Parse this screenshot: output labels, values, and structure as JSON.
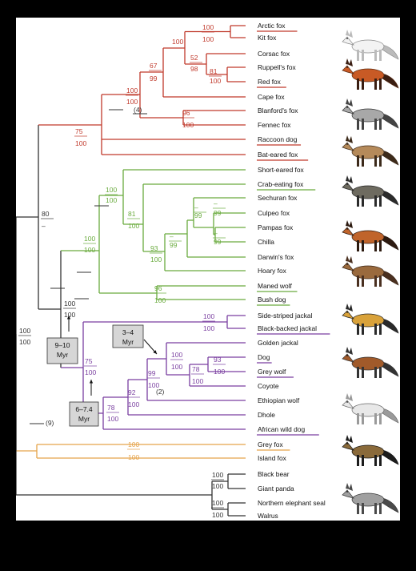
{
  "colors": {
    "vulpes": "#c0392b",
    "south_american": "#6aab3e",
    "wolf_like": "#7a3fa0",
    "grey_fox": "#e5a34a",
    "outgroup": "#333333",
    "root": "#333333"
  },
  "taxa": [
    {
      "name": "Arctic fox",
      "underlined": true,
      "clade": "vulpes"
    },
    {
      "name": "Kit fox",
      "underlined": false,
      "clade": "vulpes"
    },
    {
      "name": "Corsac fox",
      "underlined": false,
      "clade": "vulpes"
    },
    {
      "name": "Ruppell's fox",
      "underlined": false,
      "clade": "vulpes"
    },
    {
      "name": "Red fox",
      "underlined": true,
      "clade": "vulpes"
    },
    {
      "name": "Cape fox",
      "underlined": false,
      "clade": "vulpes"
    },
    {
      "name": "Blanford's fox",
      "underlined": false,
      "clade": "vulpes"
    },
    {
      "name": "Fennec fox",
      "underlined": false,
      "clade": "vulpes"
    },
    {
      "name": "Raccoon dog",
      "underlined": true,
      "clade": "vulpes"
    },
    {
      "name": "Bat-eared fox",
      "underlined": true,
      "clade": "vulpes"
    },
    {
      "name": "Short-eared fox",
      "underlined": false,
      "clade": "south_american"
    },
    {
      "name": "Crab-eating fox",
      "underlined": true,
      "clade": "south_american"
    },
    {
      "name": "Sechuran fox",
      "underlined": false,
      "clade": "south_american"
    },
    {
      "name": "Culpeo fox",
      "underlined": false,
      "clade": "south_american"
    },
    {
      "name": "Pampas fox",
      "underlined": false,
      "clade": "south_american"
    },
    {
      "name": "Chilla",
      "underlined": false,
      "clade": "south_american"
    },
    {
      "name": "Darwin's fox",
      "underlined": false,
      "clade": "south_american"
    },
    {
      "name": "Hoary fox",
      "underlined": false,
      "clade": "south_american"
    },
    {
      "name": "Maned wolf",
      "underlined": true,
      "clade": "south_american"
    },
    {
      "name": "Bush dog",
      "underlined": true,
      "clade": "south_american"
    },
    {
      "name": "Side-striped jackal",
      "underlined": false,
      "clade": "wolf_like"
    },
    {
      "name": "Black-backed jackal",
      "underlined": true,
      "clade": "wolf_like"
    },
    {
      "name": "Golden jackal",
      "underlined": false,
      "clade": "wolf_like"
    },
    {
      "name": "Dog",
      "underlined": true,
      "clade": "wolf_like"
    },
    {
      "name": "Grey wolf",
      "underlined": true,
      "clade": "wolf_like"
    },
    {
      "name": "Coyote",
      "underlined": false,
      "clade": "wolf_like"
    },
    {
      "name": "Ethiopian wolf",
      "underlined": false,
      "clade": "wolf_like"
    },
    {
      "name": "Dhole",
      "underlined": false,
      "clade": "wolf_like"
    },
    {
      "name": "African wild dog",
      "underlined": true,
      "clade": "wolf_like"
    },
    {
      "name": "Grey fox",
      "underlined": true,
      "clade": "grey_fox"
    },
    {
      "name": "Island fox",
      "underlined": false,
      "clade": "grey_fox"
    },
    {
      "name": "Black bear",
      "underlined": false,
      "clade": "outgroup"
    },
    {
      "name": "Giant panda",
      "underlined": false,
      "clade": "outgroup"
    },
    {
      "name": "Northern elephant seal",
      "underlined": false,
      "clade": "outgroup"
    },
    {
      "name": "Walrus",
      "underlined": false,
      "clade": "outgroup"
    }
  ],
  "node_support": [
    {
      "node": "arctic-kit",
      "top": "100",
      "bottom": "100",
      "clade": "vulpes"
    },
    {
      "node": "corsac-ruppell-red",
      "top": "52",
      "bottom": "98",
      "clade": "vulpes"
    },
    {
      "node": "ruppell-red",
      "top": "81",
      "bottom": "100",
      "clade": "vulpes"
    },
    {
      "node": "vulpes-core",
      "top": "100",
      "bottom": "",
      "clade": "vulpes"
    },
    {
      "node": "vulpes-plus-cape",
      "top": "67",
      "bottom": "99",
      "clade": "vulpes"
    },
    {
      "node": "vulpes-clade",
      "top": "100",
      "bottom": "100",
      "clade": "vulpes"
    },
    {
      "node": "blanford-fennec",
      "top": "96",
      "bottom": "100",
      "clade": "vulpes"
    },
    {
      "node": "red-fox-like",
      "top": "75",
      "bottom": "100",
      "clade": "vulpes"
    },
    {
      "node": "dogs-and-foxes",
      "top": "80",
      "bottom": "–",
      "clade": "root"
    },
    {
      "node": "south-american-core",
      "top": "100",
      "bottom": "100",
      "clade": "south_american"
    },
    {
      "node": "lycalopex-plus",
      "top": "81",
      "bottom": "100",
      "clade": "south_american"
    },
    {
      "node": "sechuran-culpeo-group",
      "top": "–",
      "bottom": "99",
      "clade": "south_american"
    },
    {
      "node": "culpeo-pampas",
      "top": "–",
      "bottom": "99",
      "clade": "south_american"
    },
    {
      "node": "pampas-chilla",
      "top": "–",
      "bottom": "99",
      "clade": "south_american"
    },
    {
      "node": "lycalopex",
      "top": "–",
      "bottom": "99",
      "clade": "south_american"
    },
    {
      "node": "lycalopex-plus-hoary",
      "top": "93",
      "bottom": "100",
      "clade": "south_american"
    },
    {
      "node": "south-american-canids",
      "top": "100",
      "bottom": "100",
      "clade": "south_american"
    },
    {
      "node": "maned-bush",
      "top": "96",
      "bottom": "100",
      "clade": "south_american"
    },
    {
      "node": "sa-plus-wolflike",
      "top": "100",
      "bottom": "100",
      "clade": "root"
    },
    {
      "node": "jackals",
      "top": "100",
      "bottom": "100",
      "clade": "wolf_like"
    },
    {
      "node": "dog-wolf-coyote",
      "top": "78",
      "bottom": "100",
      "clade": "wolf_like"
    },
    {
      "node": "dog-wolf",
      "top": "93",
      "bottom": "100",
      "clade": "wolf_like"
    },
    {
      "node": "golden-jackal-group",
      "top": "100",
      "bottom": "100",
      "clade": "wolf_like"
    },
    {
      "node": "plus-ethiopian",
      "top": "99",
      "bottom": "100",
      "clade": "wolf_like"
    },
    {
      "node": "plus-dhole",
      "top": "92",
      "bottom": "100",
      "clade": "wolf_like"
    },
    {
      "node": "plus-wild-dog",
      "top": "78",
      "bottom": "100",
      "clade": "wolf_like"
    },
    {
      "node": "wolf-like-canids",
      "top": "75",
      "bottom": "100",
      "clade": "wolf_like"
    },
    {
      "node": "grey-island",
      "top": "100",
      "bottom": "100",
      "clade": "grey_fox"
    },
    {
      "node": "canidae",
      "top": "100",
      "bottom": "100",
      "clade": "root"
    },
    {
      "node": "bear-panda",
      "top": "100",
      "bottom": "100",
      "clade": "outgroup"
    },
    {
      "node": "seal-walrus",
      "top": "100",
      "bottom": "100",
      "clade": "outgroup"
    }
  ],
  "annotations": {
    "vulpes_events": "(4)",
    "wolf_events": "(2)",
    "grey_fox_events": "(9)"
  },
  "date_boxes": [
    {
      "id": "9-10",
      "line1": "9–10",
      "line2": "Myr"
    },
    {
      "id": "6-7.4",
      "line1": "6–7.4",
      "line2": "Myr"
    },
    {
      "id": "3-4",
      "line1": "3–4",
      "line2": "Myr"
    }
  ],
  "animal_icons": [
    "arctic-fox-icon",
    "red-fox-icon",
    "raccoon-dog-icon",
    "bat-eared-fox-icon",
    "short-eared-fox-icon",
    "culpeo-fox-icon",
    "bush-dog-icon",
    "jackal-icon",
    "dog-icon",
    "grey-wolf-icon",
    "african-wild-dog-icon",
    "grey-fox-icon"
  ]
}
